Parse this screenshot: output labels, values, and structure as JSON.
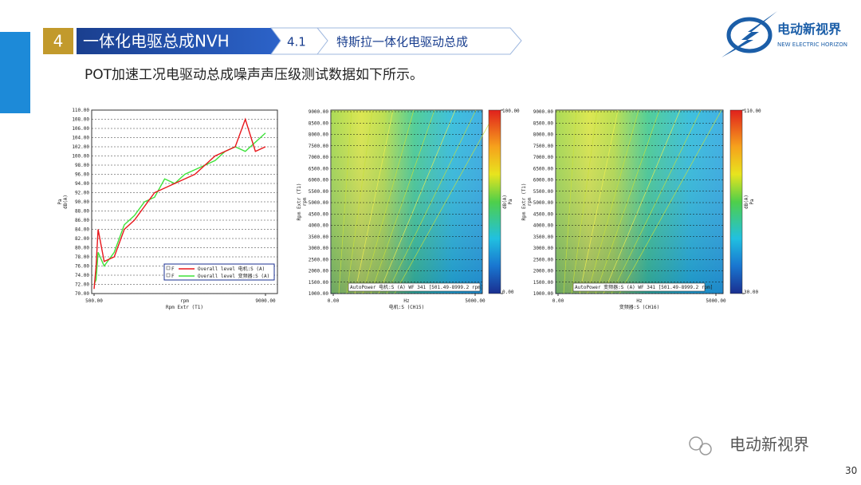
{
  "header": {
    "section_number": "4",
    "section_title": "一体化电驱总成NVH",
    "sub_number": "4.1",
    "sub_title": "特斯拉一体化电驱动总成"
  },
  "logo": {
    "name": "电动新视界",
    "tagline": "NEW ELECTRIC HORIZON"
  },
  "subtitle": "POT加速工况电驱动总成噪声声压级测试数据如下所示。",
  "chart_data": [
    {
      "type": "line",
      "ylabel": "dB(A)",
      "ylabel_unit": "Pa",
      "xlabel_unit": "rpm",
      "xlabel": "Rpm Extr (T1)",
      "x": [
        500,
        600,
        700,
        1000,
        1500,
        2000,
        2500,
        3000,
        3500,
        4000,
        4500,
        5000,
        5500,
        6000,
        6500,
        7000,
        7500,
        8000,
        8500,
        9000
      ],
      "series": [
        {
          "name": "Overall level 电机:S (A)",
          "color": "#e8161b",
          "values": [
            71,
            76,
            84,
            77,
            78,
            84,
            86,
            89,
            92,
            93,
            94,
            95,
            96,
            98,
            100,
            101,
            102,
            108,
            101,
            102
          ]
        },
        {
          "name": "Overall level 变频器:S (A)",
          "color": "#3ee23a",
          "values": [
            72,
            73,
            79,
            76,
            79,
            85,
            87,
            90,
            91,
            95,
            94,
            96,
            97,
            98,
            99,
            101,
            102,
            101,
            103,
            105
          ]
        }
      ],
      "xlim": [
        500,
        9000
      ],
      "xticks": [
        {
          "value": 500,
          "label": "500.00"
        },
        {
          "value": 9000,
          "label": "9000.00"
        }
      ],
      "ylim": [
        70,
        110
      ],
      "yticks": [
        {
          "value": 70,
          "label": "70.00"
        },
        {
          "value": 72,
          "label": "72.00"
        },
        {
          "value": 74,
          "label": "74.00"
        },
        {
          "value": 76,
          "label": "76.00"
        },
        {
          "value": 78,
          "label": "78.00"
        },
        {
          "value": 80,
          "label": "80.00"
        },
        {
          "value": 82,
          "label": "82.00"
        },
        {
          "value": 84,
          "label": "84.00"
        },
        {
          "value": 86,
          "label": "86.00"
        },
        {
          "value": 88,
          "label": "88.00"
        },
        {
          "value": 90,
          "label": "90.00"
        },
        {
          "value": 92,
          "label": "92.00"
        },
        {
          "value": 94,
          "label": "94.00"
        },
        {
          "value": 96,
          "label": "96.00"
        },
        {
          "value": 98,
          "label": "98.00"
        },
        {
          "value": 100,
          "label": "100.00"
        },
        {
          "value": 102,
          "label": "102.00"
        },
        {
          "value": 104,
          "label": "104.00"
        },
        {
          "value": 106,
          "label": "106.00"
        },
        {
          "value": 108,
          "label": "108.00"
        },
        {
          "value": 110,
          "label": "110.00"
        }
      ],
      "legend_marker": "F",
      "grid": true
    },
    {
      "type": "heatmap",
      "annotation": "AutoPower 电机:S (A) WF 341 [501.49-8999.2 rpm]",
      "xlabel_unit": "Hz",
      "xlabel": "电机:S (CH15)",
      "ylabel": "Rpm Extr (T1)",
      "ylabel_unit": "rpm",
      "colorbar_label": "dB(A)",
      "colorbar_unit": "Pa",
      "xlim": [
        0,
        5000
      ],
      "xticks": [
        {
          "value": 0,
          "label": "0.00"
        },
        {
          "value": 5000,
          "label": "5000.00"
        }
      ],
      "ylim": [
        1000,
        9000
      ],
      "yticks": [
        {
          "value": 1000,
          "label": "1000.00"
        },
        {
          "value": 1500,
          "label": "1500.00"
        },
        {
          "value": 2000,
          "label": "2000.00"
        },
        {
          "value": 2500,
          "label": "2500.00"
        },
        {
          "value": 3000,
          "label": "3000.00"
        },
        {
          "value": 3500,
          "label": "3500.00"
        },
        {
          "value": 4000,
          "label": "4000.00"
        },
        {
          "value": 4500,
          "label": "4500.00"
        },
        {
          "value": 5000,
          "label": "5000.00"
        },
        {
          "value": 5500,
          "label": "5500.00"
        },
        {
          "value": 6000,
          "label": "6000.00"
        },
        {
          "value": 6500,
          "label": "6500.00"
        },
        {
          "value": 7000,
          "label": "7000.00"
        },
        {
          "value": 7500,
          "label": "7500.00"
        },
        {
          "value": 8000,
          "label": "8000.00"
        },
        {
          "value": 8500,
          "label": "8500.00"
        },
        {
          "value": 9000,
          "label": "9000.00"
        }
      ],
      "clim": [
        {
          "value": 0,
          "label": "0.00"
        },
        {
          "value": 100,
          "label": "100.00"
        }
      ]
    },
    {
      "type": "heatmap",
      "annotation": "AutoPower 变频器:S (A) WF 341 [501.49-8999.2 rpm]",
      "xlabel_unit": "Hz",
      "xlabel": "变频器:S (CH16)",
      "ylabel": "Rpm Extr (T1)",
      "ylabel_unit": "rpm",
      "colorbar_label": "dB(A)",
      "colorbar_unit": "Pa",
      "xlim": [
        0,
        5000
      ],
      "xticks": [
        {
          "value": 0,
          "label": "0.00"
        },
        {
          "value": 5000,
          "label": "5000.00"
        }
      ],
      "ylim": [
        1000,
        9000
      ],
      "yticks": [
        {
          "value": 1000,
          "label": "1000.00"
        },
        {
          "value": 1500,
          "label": "1500.00"
        },
        {
          "value": 2000,
          "label": "2000.00"
        },
        {
          "value": 2500,
          "label": "2500.00"
        },
        {
          "value": 3000,
          "label": "3000.00"
        },
        {
          "value": 3500,
          "label": "3500.00"
        },
        {
          "value": 4000,
          "label": "4000.00"
        },
        {
          "value": 4500,
          "label": "4500.00"
        },
        {
          "value": 5000,
          "label": "5000.00"
        },
        {
          "value": 5500,
          "label": "5500.00"
        },
        {
          "value": 6000,
          "label": "6000.00"
        },
        {
          "value": 6500,
          "label": "6500.00"
        },
        {
          "value": 7000,
          "label": "7000.00"
        },
        {
          "value": 7500,
          "label": "7500.00"
        },
        {
          "value": 8000,
          "label": "8000.00"
        },
        {
          "value": 8500,
          "label": "8500.00"
        },
        {
          "value": 9000,
          "label": "9000.00"
        }
      ],
      "clim": [
        {
          "value": 30,
          "label": "30.00"
        },
        {
          "value": 110,
          "label": "110.00"
        }
      ]
    }
  ],
  "watermark": "电动新视界",
  "page_number": "30"
}
